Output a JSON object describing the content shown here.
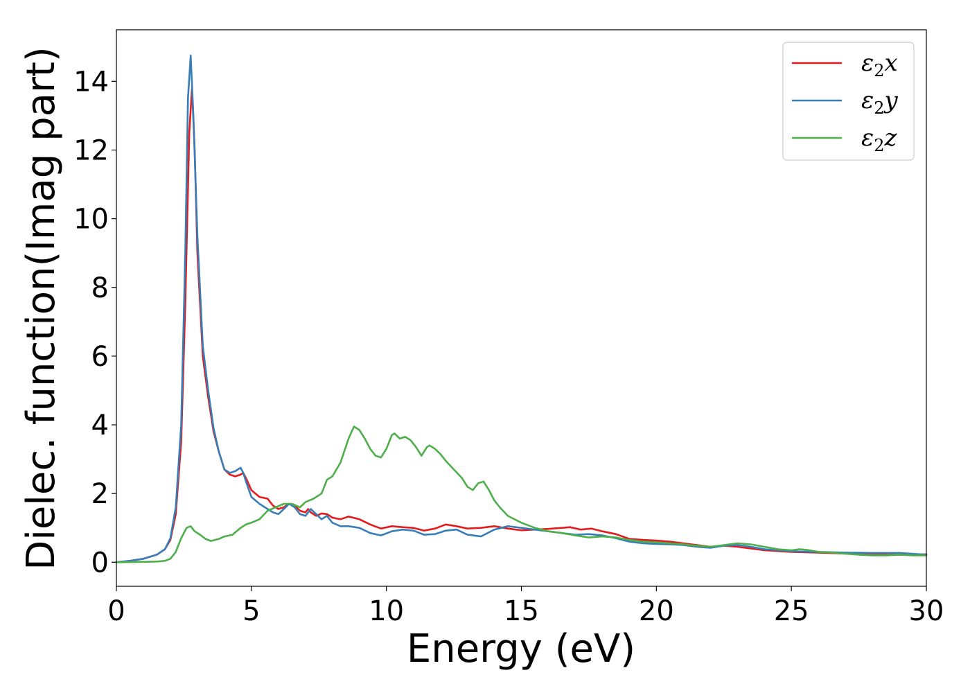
{
  "chart_data": {
    "type": "line",
    "title": "",
    "xlabel": "Energy (eV)",
    "ylabel": "Dielec. function(Imag part)",
    "xlim": [
      0,
      30
    ],
    "ylim": [
      -0.7,
      15.5
    ],
    "xticks": [
      0,
      5,
      10,
      15,
      20,
      25,
      30
    ],
    "yticks": [
      0,
      2,
      4,
      6,
      8,
      10,
      12,
      14
    ],
    "grid": false,
    "legend_position": "top-right",
    "series": [
      {
        "name": "ε₂x",
        "legend_base": "ε",
        "legend_sub": "2",
        "legend_tail": "x",
        "color": "#e41a1c",
        "x": [
          0,
          0.5,
          1,
          1.5,
          1.8,
          2.0,
          2.2,
          2.4,
          2.55,
          2.7,
          2.8,
          2.9,
          3.0,
          3.2,
          3.4,
          3.6,
          3.8,
          4.0,
          4.2,
          4.4,
          4.6,
          4.7,
          4.8,
          5.0,
          5.3,
          5.6,
          5.8,
          6.0,
          6.2,
          6.4,
          6.6,
          6.8,
          7.0,
          7.1,
          7.2,
          7.4,
          7.6,
          7.8,
          8.0,
          8.3,
          8.6,
          9.0,
          9.4,
          9.8,
          10.2,
          10.6,
          11.0,
          11.4,
          11.8,
          12.2,
          12.6,
          13.0,
          13.5,
          14.0,
          14.5,
          15.0,
          15.5,
          16.0,
          16.5,
          16.8,
          17.2,
          17.6,
          18.0,
          18.5,
          19.0,
          19.5,
          20.0,
          20.5,
          21.0,
          21.5,
          22.0,
          22.5,
          23.0,
          23.5,
          24.0,
          25.0,
          26.0,
          27.0,
          28.0,
          29.0,
          30.0
        ],
        "y": [
          0.0,
          0.04,
          0.1,
          0.22,
          0.38,
          0.65,
          1.4,
          3.5,
          7.5,
          12.5,
          13.8,
          12.0,
          9.0,
          6.0,
          4.8,
          3.8,
          3.2,
          2.7,
          2.55,
          2.5,
          2.55,
          2.6,
          2.45,
          2.1,
          1.9,
          1.85,
          1.65,
          1.55,
          1.6,
          1.7,
          1.65,
          1.5,
          1.45,
          1.55,
          1.45,
          1.35,
          1.42,
          1.4,
          1.3,
          1.25,
          1.33,
          1.25,
          1.1,
          0.98,
          1.05,
          1.02,
          1.0,
          0.92,
          0.98,
          1.1,
          1.05,
          0.98,
          1.0,
          1.05,
          0.98,
          0.93,
          0.95,
          0.97,
          1.0,
          1.02,
          0.95,
          0.98,
          0.9,
          0.82,
          0.68,
          0.65,
          0.63,
          0.6,
          0.55,
          0.5,
          0.45,
          0.48,
          0.45,
          0.4,
          0.35,
          0.3,
          0.28,
          0.25,
          0.22,
          0.22,
          0.23
        ]
      },
      {
        "name": "ε₂y",
        "legend_base": "ε",
        "legend_sub": "2",
        "legend_tail": "y",
        "color": "#377eb8",
        "x": [
          0,
          0.5,
          1,
          1.5,
          1.8,
          2.0,
          2.2,
          2.4,
          2.55,
          2.65,
          2.75,
          2.85,
          3.0,
          3.2,
          3.4,
          3.6,
          3.8,
          4.0,
          4.2,
          4.4,
          4.6,
          4.7,
          4.8,
          5.0,
          5.3,
          5.6,
          5.8,
          6.0,
          6.2,
          6.4,
          6.6,
          6.8,
          7.0,
          7.1,
          7.2,
          7.4,
          7.6,
          7.8,
          8.0,
          8.3,
          8.6,
          9.0,
          9.4,
          9.8,
          10.2,
          10.6,
          11.0,
          11.4,
          11.8,
          12.2,
          12.6,
          13.0,
          13.5,
          14.0,
          14.5,
          15.0,
          15.5,
          16.0,
          16.5,
          17.0,
          17.5,
          18.0,
          18.5,
          19.0,
          19.5,
          20.0,
          20.5,
          21.0,
          21.5,
          22.0,
          22.5,
          23.0,
          23.5,
          24.0,
          25.0,
          26.0,
          27.0,
          28.0,
          29.0,
          30.0
        ],
        "y": [
          0.0,
          0.04,
          0.1,
          0.22,
          0.38,
          0.7,
          1.6,
          4.0,
          9.0,
          13.5,
          14.75,
          13.0,
          9.5,
          6.3,
          5.0,
          3.9,
          3.2,
          2.7,
          2.6,
          2.65,
          2.75,
          2.6,
          2.35,
          1.9,
          1.7,
          1.55,
          1.45,
          1.4,
          1.55,
          1.7,
          1.6,
          1.4,
          1.35,
          1.45,
          1.55,
          1.4,
          1.25,
          1.35,
          1.15,
          1.05,
          1.05,
          1.0,
          0.85,
          0.78,
          0.9,
          0.95,
          0.92,
          0.8,
          0.82,
          0.92,
          0.95,
          0.8,
          0.75,
          0.95,
          1.05,
          1.0,
          0.95,
          0.9,
          0.85,
          0.8,
          0.82,
          0.78,
          0.7,
          0.6,
          0.55,
          0.53,
          0.52,
          0.5,
          0.45,
          0.42,
          0.48,
          0.5,
          0.45,
          0.38,
          0.32,
          0.3,
          0.28,
          0.27,
          0.27,
          0.22
        ]
      },
      {
        "name": "ε₂z",
        "legend_base": "ε",
        "legend_sub": "2",
        "legend_tail": "z",
        "color": "#4daf4a",
        "x": [
          0,
          1,
          1.5,
          1.8,
          2.0,
          2.2,
          2.4,
          2.6,
          2.75,
          2.9,
          3.1,
          3.3,
          3.5,
          3.8,
          4.0,
          4.3,
          4.6,
          4.8,
          5.0,
          5.3,
          5.6,
          5.9,
          6.2,
          6.5,
          6.8,
          7.0,
          7.3,
          7.6,
          7.8,
          8.0,
          8.3,
          8.6,
          8.8,
          9.0,
          9.2,
          9.4,
          9.6,
          9.8,
          10.0,
          10.2,
          10.3,
          10.5,
          10.7,
          10.9,
          11.1,
          11.3,
          11.5,
          11.6,
          11.8,
          12.0,
          12.2,
          12.5,
          12.8,
          13.0,
          13.2,
          13.4,
          13.6,
          13.8,
          14.0,
          14.2,
          14.5,
          15.0,
          15.5,
          16.0,
          16.5,
          17.0,
          17.5,
          18.0,
          18.5,
          19.0,
          19.5,
          20.0,
          20.5,
          21.0,
          21.5,
          22.0,
          22.5,
          23.0,
          23.5,
          24.0,
          24.5,
          25.0,
          25.3,
          25.6,
          26.0,
          26.5,
          27.0,
          27.5,
          28.0,
          28.5,
          29.0,
          29.5,
          30.0
        ],
        "y": [
          0.0,
          0.01,
          0.02,
          0.04,
          0.1,
          0.3,
          0.7,
          1.0,
          1.05,
          0.9,
          0.8,
          0.68,
          0.62,
          0.68,
          0.75,
          0.8,
          1.0,
          1.1,
          1.15,
          1.25,
          1.5,
          1.6,
          1.7,
          1.7,
          1.6,
          1.75,
          1.85,
          2.0,
          2.4,
          2.5,
          2.9,
          3.6,
          3.95,
          3.85,
          3.6,
          3.3,
          3.1,
          3.05,
          3.3,
          3.7,
          3.75,
          3.6,
          3.65,
          3.55,
          3.35,
          3.1,
          3.35,
          3.4,
          3.3,
          3.15,
          2.95,
          2.7,
          2.45,
          2.2,
          2.1,
          2.3,
          2.35,
          2.1,
          1.8,
          1.6,
          1.35,
          1.15,
          1.0,
          0.9,
          0.85,
          0.78,
          0.72,
          0.75,
          0.72,
          0.65,
          0.6,
          0.58,
          0.55,
          0.52,
          0.48,
          0.45,
          0.5,
          0.55,
          0.52,
          0.45,
          0.38,
          0.35,
          0.38,
          0.36,
          0.3,
          0.28,
          0.25,
          0.22,
          0.2,
          0.2,
          0.22,
          0.2,
          0.2
        ]
      }
    ]
  }
}
